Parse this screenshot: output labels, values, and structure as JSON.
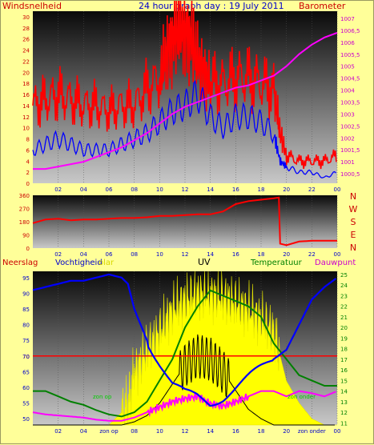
{
  "title": "24 hour graph day : 19 Julу 2011",
  "colors": {
    "red": "#ff0000",
    "blue": "#0000ff",
    "magenta": "#ff00ff",
    "green": "#008000",
    "yellow": "#ffff00",
    "black": "#000000",
    "gray_top": "#0a0a0a",
    "gray_bottom": "#c0c0c0",
    "label_purple": "#cc00cc",
    "label_red": "#cc0000"
  },
  "chart_data": [
    {
      "type": "line",
      "name": "wind-barometer",
      "left_label": "Windsnelheid",
      "right_label": "Barometer",
      "x_ticks": [
        "02",
        "04",
        "06",
        "08",
        "10",
        "12",
        "14",
        "16",
        "18",
        "20",
        "22",
        "00"
      ],
      "y_left_ticks": [
        "0",
        "2",
        "4",
        "6",
        "8",
        "10",
        "12",
        "14",
        "16",
        "18",
        "20",
        "22",
        "24",
        "26",
        "28",
        "30"
      ],
      "y_left_range": [
        0,
        31
      ],
      "y_right_ticks": [
        "1000,5",
        "1001",
        "1001,5",
        "1002",
        "1002,5",
        "1003",
        "1003,5",
        "1004",
        "1004,5",
        "1005",
        "1005,5",
        "1006",
        "1006,5",
        "1007"
      ],
      "y_right_range": [
        1000.1,
        1007.3
      ],
      "x_range": [
        0,
        24
      ],
      "series": [
        {
          "name": "gust",
          "color": "#ff0000",
          "x": [
            0,
            1,
            2,
            3,
            4,
            5,
            6,
            7,
            8,
            9,
            10,
            10.5,
            11,
            11.5,
            12,
            12.5,
            13,
            13.5,
            14,
            15,
            16,
            17,
            18,
            19,
            19.5,
            20,
            21,
            22,
            23,
            24
          ],
          "y": [
            14,
            15,
            16,
            15,
            14,
            14,
            13,
            14,
            14,
            17,
            19,
            23,
            26,
            28,
            27,
            26,
            22,
            20,
            18,
            18,
            19,
            19,
            18,
            17,
            9,
            5,
            4,
            4,
            4,
            5
          ]
        },
        {
          "name": "average",
          "color": "#0000ff",
          "x": [
            0,
            1,
            2,
            3,
            4,
            5,
            6,
            7,
            8,
            9,
            10,
            11,
            12,
            13,
            14,
            15,
            16,
            17,
            18,
            19,
            19.5,
            20,
            21,
            22,
            23,
            24
          ],
          "y": [
            6,
            7,
            8,
            7,
            6,
            6,
            6,
            7,
            8,
            9,
            11,
            13,
            14,
            16,
            12,
            10,
            12,
            12,
            11,
            9,
            4,
            3,
            2,
            2,
            1,
            2
          ]
        },
        {
          "name": "barometer",
          "color": "#ff00ff",
          "x": [
            0,
            1,
            2,
            3,
            4,
            5,
            6,
            7,
            8,
            9,
            10,
            11,
            12,
            13,
            14,
            15,
            16,
            17,
            18,
            19,
            20,
            21,
            22,
            23,
            24
          ],
          "y": [
            1000.7,
            1000.7,
            1000.8,
            1000.9,
            1001.0,
            1001.2,
            1001.4,
            1001.6,
            1001.9,
            1002.2,
            1002.6,
            1003.0,
            1003.3,
            1003.5,
            1003.7,
            1003.9,
            1004.1,
            1004.2,
            1004.4,
            1004.6,
            1005.0,
            1005.5,
            1005.9,
            1006.2,
            1006.4
          ]
        }
      ]
    },
    {
      "type": "line",
      "name": "wind-direction",
      "right_label_letters": [
        "N",
        "W",
        "S",
        "E",
        "N"
      ],
      "x_ticks": [
        "02",
        "04",
        "06",
        "08",
        "10",
        "12",
        "14",
        "16",
        "18",
        "20",
        "22",
        "00"
      ],
      "y_ticks": [
        "0",
        "90",
        "180",
        "270",
        "360"
      ],
      "y_range": [
        0,
        360
      ],
      "x_range": [
        0,
        24
      ],
      "series": [
        {
          "name": "direction",
          "color": "#ff0000",
          "x": [
            0,
            1,
            2,
            3,
            4,
            5,
            6,
            7,
            8,
            9,
            10,
            11,
            12,
            13,
            14,
            15,
            16,
            17,
            18,
            19,
            19.4,
            19.5,
            20,
            21,
            22,
            23,
            24
          ],
          "y": [
            170,
            195,
            200,
            190,
            195,
            195,
            200,
            205,
            205,
            210,
            220,
            220,
            225,
            230,
            230,
            250,
            300,
            320,
            330,
            340,
            345,
            30,
            20,
            45,
            50,
            50,
            50
          ]
        }
      ]
    },
    {
      "type": "line",
      "name": "humidity-uv-temperature",
      "labels": {
        "neerslag": "Neerslag",
        "vochtigheid": "Vochtigheid",
        "solar": "olar",
        "uv": "UV",
        "temperatuur": "Temperatuur",
        "dauwpunt": "Dauwpunt",
        "zon_op": "zon op",
        "zon_onder": "zon onder"
      },
      "x_ticks": [
        "02",
        "04",
        "zon op",
        "08",
        "10",
        "12",
        "14",
        "16",
        "18",
        "20",
        "zon onder",
        "00"
      ],
      "y_left_ticks": [
        "50",
        "55",
        "60",
        "65",
        "70",
        "75",
        "80",
        "85",
        "90",
        "95"
      ],
      "y_left_range": [
        48,
        97
      ],
      "y_right_ticks": [
        "11",
        "12",
        "13",
        "14",
        "15",
        "16",
        "17",
        "18",
        "19",
        "20",
        "21",
        "22",
        "23",
        "24",
        "25"
      ],
      "y_right_range": [
        10.8,
        25.3
      ],
      "x_range": [
        0,
        24
      ],
      "reference_line_70": 70,
      "series": [
        {
          "name": "humidity",
          "color": "#0000ff",
          "x": [
            0,
            1,
            2,
            3,
            4,
            5,
            6,
            7,
            7.5,
            8,
            9,
            10,
            11,
            12,
            13,
            14,
            15,
            16,
            17,
            18,
            19,
            20,
            21,
            22,
            23,
            24
          ],
          "y": [
            91,
            92,
            93,
            94,
            94,
            95,
            96,
            95,
            93,
            85,
            75,
            68,
            61,
            58,
            57,
            55,
            57,
            60,
            63,
            66,
            69,
            72,
            80,
            88,
            92,
            95
          ]
        },
        {
          "name": "temperature",
          "color": "#008000",
          "x": [
            0,
            1,
            2,
            3,
            4,
            5,
            6,
            7,
            8,
            9,
            10,
            11,
            12,
            13,
            14,
            15,
            16,
            17,
            18,
            19,
            20,
            21,
            22,
            23,
            24
          ],
          "y": [
            14.0,
            14.0,
            13.5,
            13.0,
            12.7,
            12.2,
            11.8,
            11.6,
            12.0,
            13.0,
            15.0,
            17.0,
            20.0,
            22.0,
            23.5,
            23.0,
            22.5,
            22.0,
            21.0,
            18.5,
            17.0,
            15.5,
            15.0,
            14.5,
            14.5
          ]
        },
        {
          "name": "dewpoint",
          "color": "#ff00ff",
          "x": [
            0,
            1,
            2,
            3,
            4,
            5,
            6,
            7,
            8,
            9,
            10,
            11,
            12,
            13,
            14,
            15,
            16,
            17,
            18,
            19,
            20,
            21,
            22,
            23,
            24
          ],
          "y": [
            12.0,
            11.8,
            11.7,
            11.6,
            11.5,
            11.3,
            11.2,
            11.2,
            11.5,
            12.0,
            12.5,
            13.0,
            13.3,
            13.5,
            12.8,
            12.6,
            13.0,
            13.5,
            14.0,
            14.0,
            13.5,
            14.0,
            13.8,
            13.5,
            14.0
          ]
        },
        {
          "name": "solar",
          "color": "#ffff00",
          "x": [
            0,
            6,
            7,
            7.5,
            8,
            9,
            10,
            11,
            12,
            13,
            14,
            15,
            16,
            17,
            18,
            19,
            19.5,
            20,
            21,
            22,
            23,
            24
          ],
          "y": [
            48,
            48,
            52,
            55,
            65,
            72,
            78,
            85,
            88,
            90,
            90,
            89,
            87,
            85,
            82,
            78,
            70,
            62,
            55,
            50,
            48,
            48
          ]
        },
        {
          "name": "uv",
          "color": "#000000",
          "x": [
            0,
            7,
            8,
            9,
            10,
            11,
            12,
            13,
            14,
            15,
            16,
            17,
            18,
            19,
            20,
            24
          ],
          "y": [
            48,
            48,
            49,
            51,
            55,
            61,
            67,
            70,
            69,
            65,
            59,
            53,
            50,
            48,
            48,
            48
          ]
        }
      ]
    }
  ]
}
